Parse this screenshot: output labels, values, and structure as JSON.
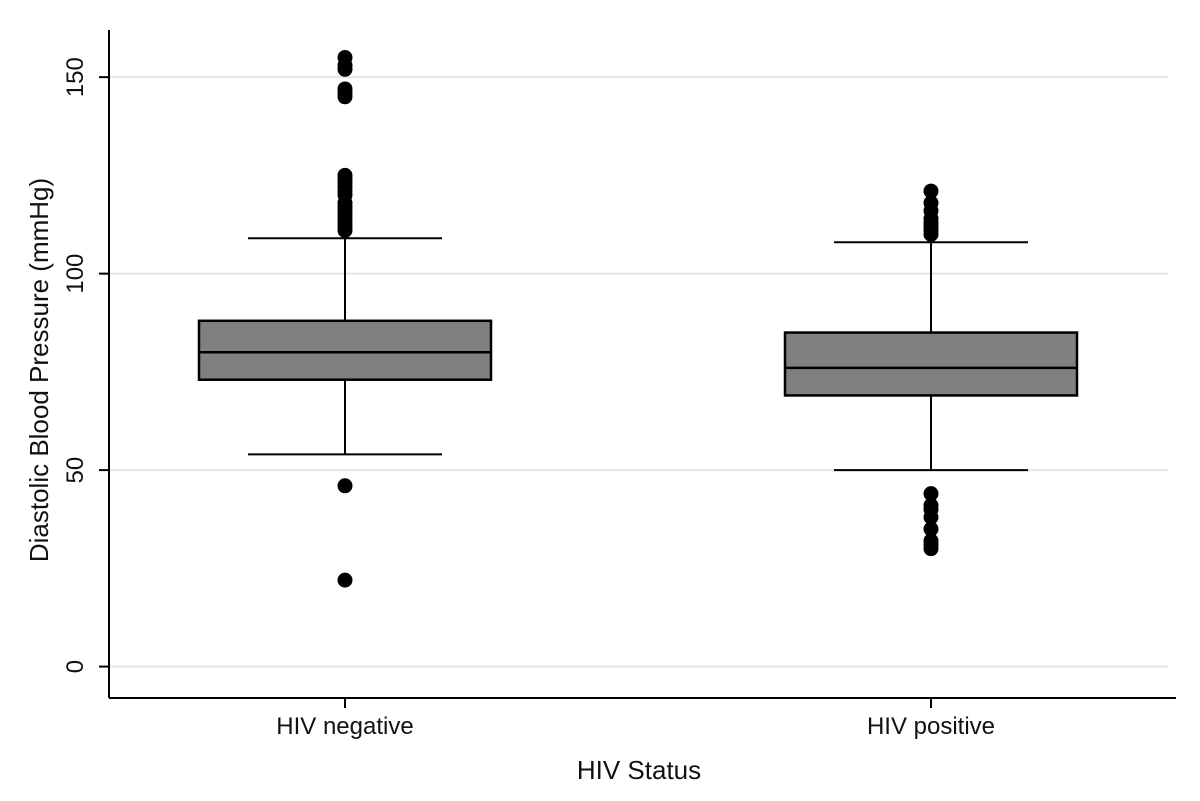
{
  "chart_data": {
    "type": "box",
    "title": "",
    "xlabel": "HIV Status",
    "ylabel": "Diastolic Blood Pressure (mmHg)",
    "ylim": [
      -8,
      162
    ],
    "yticks": [
      {
        "value": 0,
        "label": "0"
      },
      {
        "value": 50,
        "label": "50"
      },
      {
        "value": 100,
        "label": "100"
      },
      {
        "value": 150,
        "label": "150"
      }
    ],
    "grid": true,
    "categories": [
      "HIV negative",
      "HIV positive"
    ],
    "boxes": [
      {
        "name": "HIV negative",
        "lower_whisker": 54,
        "q1": 73,
        "median": 80,
        "q3": 88,
        "upper_whisker": 109,
        "outliers": [
          22,
          46,
          111,
          112,
          113,
          114,
          115,
          116,
          117,
          118,
          120,
          121,
          122,
          123,
          124,
          125,
          145,
          146,
          147,
          152,
          153,
          155
        ]
      },
      {
        "name": "HIV positive",
        "lower_whisker": 50,
        "q1": 69,
        "median": 76,
        "q3": 85,
        "upper_whisker": 108,
        "outliers": [
          30,
          31,
          32,
          35,
          38,
          40,
          41,
          44,
          110,
          111,
          112,
          113,
          114,
          116,
          118,
          121
        ]
      }
    ],
    "colors": {
      "box_fill": "#808080",
      "line": "#000000",
      "outlier": "#000000",
      "grid": "#dde6ea"
    }
  }
}
